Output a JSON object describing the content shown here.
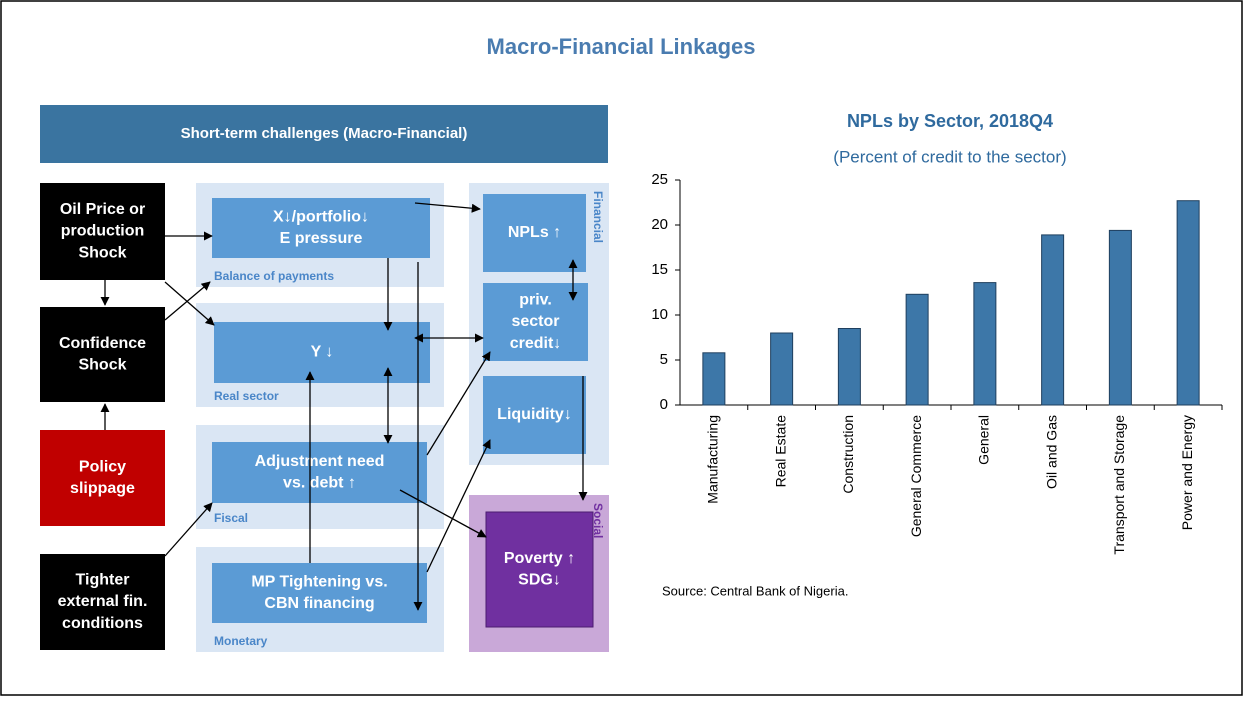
{
  "title": "Macro-Financial Linkages",
  "diagram": {
    "header": "Short-term challenges (Macro-Financial)",
    "shocks": [
      [
        "Oil Price or",
        "production",
        "Shock"
      ],
      [
        "Confidence",
        "Shock"
      ],
      [
        "Policy",
        "slippage"
      ],
      [
        "Tighter",
        "external fin.",
        "conditions"
      ]
    ],
    "groups": [
      "Balance of payments",
      "Real sector",
      "Fiscal",
      "Monetary",
      "Financial",
      "Social"
    ],
    "nodes": [
      [
        "X↓/portfolio↓",
        "E pressure"
      ],
      [
        "Y ↓"
      ],
      [
        "Adjustment need",
        "vs. debt ↑"
      ],
      [
        "MP Tightening vs.",
        "CBN financing"
      ],
      [
        "NPLs ↑"
      ],
      [
        "priv.",
        "sector",
        "credit↓"
      ],
      [
        "Liquidity↓"
      ],
      [
        "Poverty ↑",
        "SDG↓"
      ]
    ]
  },
  "chart_data": {
    "type": "bar",
    "title": "NPLs by Sector, 2018Q4",
    "subtitle": "(Percent of credit to the sector)",
    "categories": [
      "Manufacturing",
      "Real Estate",
      "Construction",
      "General Commerce",
      "General",
      "Oil and Gas",
      "Transport and Storage",
      "Power and Energy"
    ],
    "values": [
      5.8,
      8.0,
      8.5,
      12.3,
      13.6,
      18.9,
      19.4,
      22.7
    ],
    "ylim": [
      0,
      25
    ],
    "yticks": [
      0,
      5,
      10,
      15,
      20,
      25
    ],
    "color": "#3d77a8",
    "source": "Source: Central Bank of Nigeria."
  }
}
